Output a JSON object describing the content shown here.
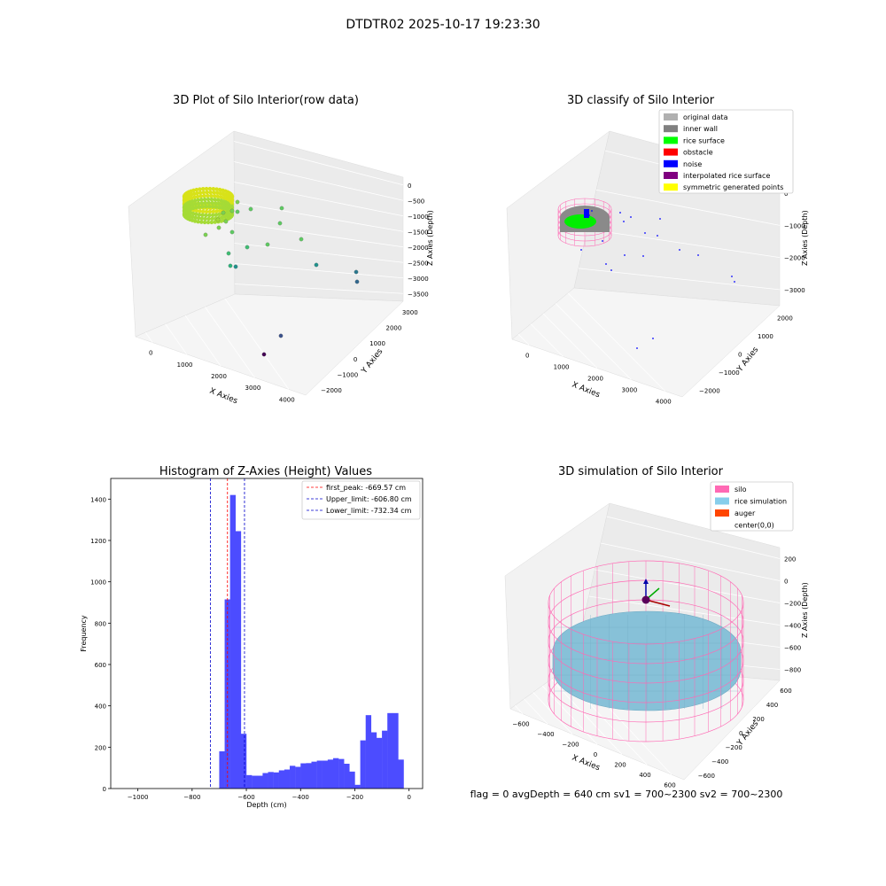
{
  "figure_title": "DTDTR02 2025-10-17 19:23:30",
  "footer_text": "flag = 0     avgDepth = 640 cm  sv1 = 700~2300  sv2 = 700~2300",
  "chart_data": [
    {
      "type": "scatter",
      "title": "3D Plot of Silo Interior(row data)",
      "xlabel": "X Axies",
      "ylabel": "Y Axies",
      "zlabel": "Z Axies (Depth)",
      "x_ticks": [
        "0",
        "1000",
        "2000",
        "3000",
        "4000"
      ],
      "y_ticks": [
        "−2000",
        "−1000",
        "0",
        "1000",
        "2000",
        "3000"
      ],
      "z_ticks": [
        "0",
        "−500",
        "−1000",
        "−1500",
        "−2000",
        "−2500",
        "−3000",
        "−3500"
      ],
      "colormap": "viridis"
    },
    {
      "type": "scatter",
      "title": "3D classify of Silo Interior",
      "xlabel": "X Axies",
      "ylabel": "Y Axies",
      "zlabel": "Z Axies (Depth)",
      "x_ticks": [
        "0",
        "1000",
        "2000",
        "3000",
        "4000"
      ],
      "y_ticks": [
        "−2000",
        "−1000",
        "0",
        "1000",
        "2000"
      ],
      "z_ticks": [
        "0",
        "−1000",
        "−2000",
        "−3000"
      ],
      "legend_position": "top-right",
      "legend": [
        {
          "label": "original data",
          "color": "#b0b0b0"
        },
        {
          "label": "inner wall",
          "color": "#808080"
        },
        {
          "label": "rice surface",
          "color": "#00ff00"
        },
        {
          "label": "obstacle",
          "color": "#ff0000"
        },
        {
          "label": "noise",
          "color": "#0000ff"
        },
        {
          "label": "interpolated rice surface",
          "color": "#800080"
        },
        {
          "label": "symmetric generated points",
          "color": "#ffff00"
        }
      ]
    },
    {
      "type": "bar",
      "title": "Histogram of Z-Axies (Height) Values",
      "xlabel": "Depth (cm)",
      "ylabel": "Frequency",
      "xlim": [
        -1100,
        50
      ],
      "ylim": [
        0,
        1500
      ],
      "x_ticks": [
        -1000,
        -800,
        -600,
        -400,
        -200,
        0
      ],
      "x_tick_labels": [
        "−1000",
        "−800",
        "−600",
        "−400",
        "−200",
        "0"
      ],
      "y_ticks": [
        0,
        200,
        400,
        600,
        800,
        1000,
        1200,
        1400
      ],
      "bar_color": "#4c4cff",
      "bin_width": 20,
      "bins": [
        {
          "x": -700,
          "value": 180
        },
        {
          "x": -680,
          "value": 915
        },
        {
          "x": -660,
          "value": 1420
        },
        {
          "x": -640,
          "value": 1245
        },
        {
          "x": -620,
          "value": 265
        },
        {
          "x": -600,
          "value": 65
        },
        {
          "x": -580,
          "value": 62
        },
        {
          "x": -560,
          "value": 62
        },
        {
          "x": -540,
          "value": 75
        },
        {
          "x": -520,
          "value": 80
        },
        {
          "x": -500,
          "value": 78
        },
        {
          "x": -480,
          "value": 88
        },
        {
          "x": -460,
          "value": 92
        },
        {
          "x": -440,
          "value": 110
        },
        {
          "x": -420,
          "value": 105
        },
        {
          "x": -400,
          "value": 122
        },
        {
          "x": -380,
          "value": 123
        },
        {
          "x": -360,
          "value": 130
        },
        {
          "x": -340,
          "value": 135
        },
        {
          "x": -320,
          "value": 135
        },
        {
          "x": -300,
          "value": 140
        },
        {
          "x": -280,
          "value": 147
        },
        {
          "x": -260,
          "value": 143
        },
        {
          "x": -240,
          "value": 120
        },
        {
          "x": -220,
          "value": 82
        },
        {
          "x": -200,
          "value": 18
        },
        {
          "x": -180,
          "value": 233
        },
        {
          "x": -160,
          "value": 355
        },
        {
          "x": -140,
          "value": 272
        },
        {
          "x": -120,
          "value": 245
        },
        {
          "x": -100,
          "value": 280
        },
        {
          "x": -80,
          "value": 365
        },
        {
          "x": -60,
          "value": 365
        },
        {
          "x": -40,
          "value": 140
        }
      ],
      "reference_lines": [
        {
          "value": -669.57,
          "label": "first_peak: -669.57 cm",
          "color": "#ff0000"
        },
        {
          "value": -606.8,
          "label": "Upper_limit: -606.80 cm",
          "color": "#0000cc"
        },
        {
          "value": -732.34,
          "label": "Lower_limit: -732.34 cm",
          "color": "#0000cc"
        }
      ],
      "legend_position": "top-right"
    },
    {
      "type": "surface",
      "title": "3D simulation of Silo Interior",
      "xlabel": "X Axies",
      "ylabel": "Y Axies",
      "zlabel": "Z Axies (Depth)",
      "x_ticks": [
        "−600",
        "−400",
        "−200",
        "0",
        "200",
        "400",
        "600"
      ],
      "y_ticks": [
        "−600",
        "−400",
        "−200",
        "0",
        "200",
        "400",
        "600"
      ],
      "z_ticks": [
        "200",
        "0",
        "−200",
        "−400",
        "−600",
        "−800"
      ],
      "legend_position": "top-right",
      "legend": [
        {
          "label": "silo",
          "color": "#ff69b4"
        },
        {
          "label": "rice simulation",
          "color": "#87ceeb"
        },
        {
          "label": "auger",
          "color": "#ff4500"
        },
        {
          "label": "center(0,0)",
          "color": ""
        }
      ]
    }
  ]
}
